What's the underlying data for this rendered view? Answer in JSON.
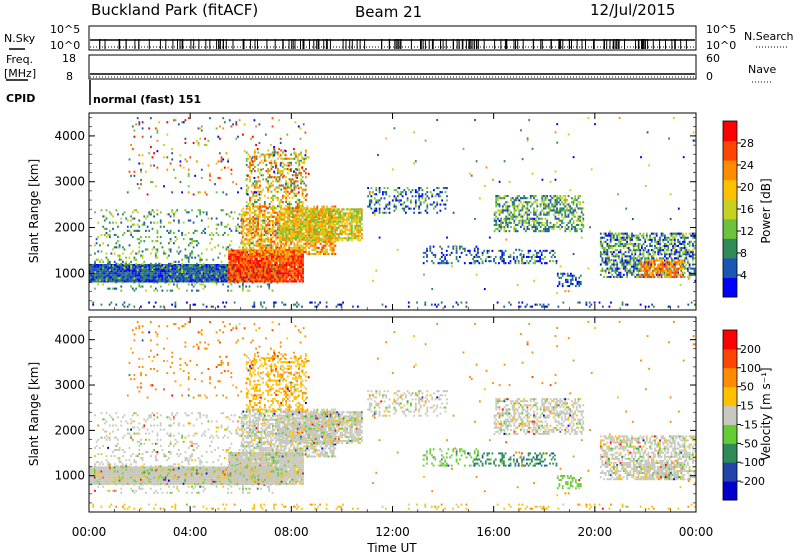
{
  "header": {
    "site": "Buckland Park (fitACF)",
    "beam": "Beam 21",
    "date": "12/Jul/2015"
  },
  "summary_panels": {
    "nsky_label": "N.Sky",
    "nsky_ticks": [
      "10^5",
      "10^0"
    ],
    "nsearch_label": "N.Search",
    "nsearch_ticks": [
      "10^5",
      "10^0"
    ],
    "freq_label_1": "Freq.",
    "freq_label_2": "[MHz]",
    "freq_ticks": [
      "18",
      "8"
    ],
    "nave_label": "Nave",
    "nave_ticks": [
      "60",
      "0"
    ],
    "cpid_label": "CPID",
    "cpid_value": "normal (fast) 151"
  },
  "chart_data": [
    {
      "type": "heatmap",
      "parameter": "power",
      "ylabel": "Slant Range [km]",
      "ylim": [
        200,
        4500
      ],
      "yticks": [
        "1000",
        "2000",
        "3000",
        "4000"
      ],
      "xlim": [
        0,
        24
      ],
      "colorbar_label": "Power [dB]",
      "colorbar_ticks": [
        "28",
        "24",
        "20",
        "16",
        "12",
        "8",
        "4"
      ],
      "colorbar_colors": [
        "#0000ff",
        "#1c56b4",
        "#2e8b57",
        "#6cc23a",
        "#c8d020",
        "#ffc000",
        "#ff8c00",
        "#ff4500",
        "#ff0000"
      ]
    },
    {
      "type": "heatmap",
      "parameter": "velocity",
      "ylabel": "Slant Range [km]",
      "ylim": [
        200,
        4500
      ],
      "yticks": [
        "1000",
        "2000",
        "3000",
        "4000"
      ],
      "xlim": [
        0,
        24
      ],
      "xlabel": "Time UT",
      "xticks": [
        "00:00",
        "04:00",
        "08:00",
        "12:00",
        "16:00",
        "20:00",
        "00:00"
      ],
      "colorbar_label": "Velocity [m s⁻¹]",
      "colorbar_ticks": [
        "200",
        "100",
        "50",
        "15",
        "-15",
        "-50",
        "-100",
        "-200"
      ],
      "colorbar_colors": [
        "#0000cd",
        "#2244aa",
        "#2e8b57",
        "#66cc33",
        "#c8c8c0",
        "#ffc000",
        "#ff8c00",
        "#ff4500",
        "#ff0000"
      ]
    }
  ]
}
